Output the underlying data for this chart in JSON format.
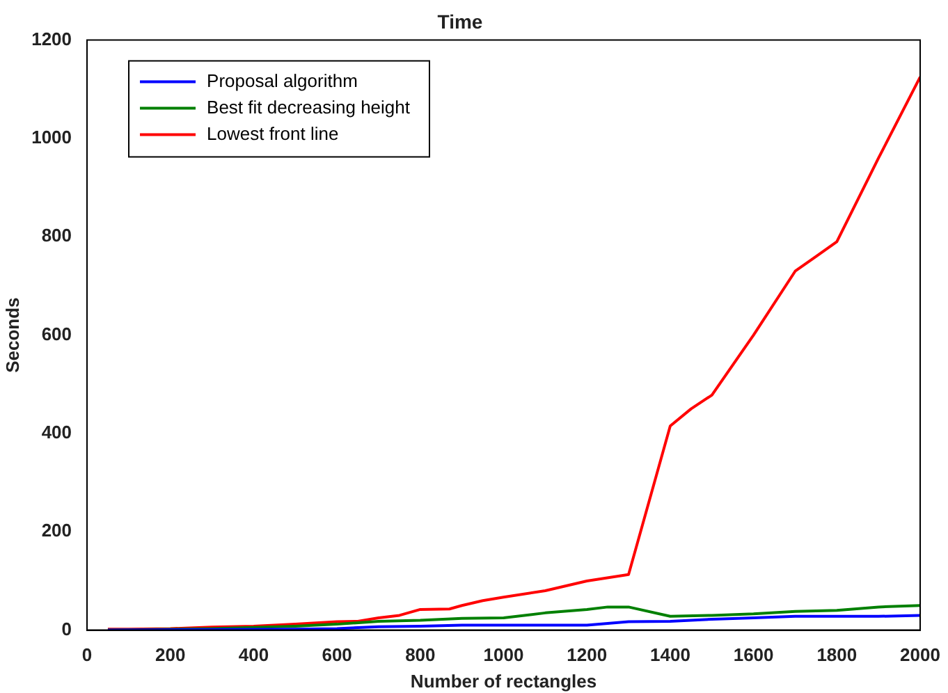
{
  "chart_data": {
    "type": "line",
    "title": "Time",
    "xlabel": "Number of rectangles",
    "ylabel": "Seconds",
    "xlim": [
      0,
      2000
    ],
    "xticks": [
      0,
      200,
      400,
      600,
      800,
      1000,
      1200,
      1400,
      1600,
      1800,
      2000
    ],
    "ylim": [
      0,
      1200
    ],
    "yticks": [
      0,
      200,
      400,
      600,
      800,
      1000,
      1200
    ],
    "grid": false,
    "legend": "top left",
    "marker": "none",
    "line_style": "solid",
    "series": [
      {
        "name": "Proposal algorithm",
        "color": "#0000ff",
        "x": [
          50,
          500,
          600,
          700,
          800,
          900,
          1000,
          1200,
          1300,
          1400,
          1500,
          1600,
          1700,
          1800,
          1900,
          2000
        ],
        "values": [
          0,
          2,
          3,
          7,
          8,
          10,
          10,
          10,
          17,
          18,
          22,
          25,
          28,
          28,
          28,
          30
        ]
      },
      {
        "name": "Best fit decreasing height",
        "color": "#008000",
        "x": [
          50,
          300,
          500,
          600,
          700,
          800,
          900,
          1000,
          1100,
          1200,
          1250,
          1300,
          1400,
          1500,
          1600,
          1700,
          1800,
          1900,
          2000
        ],
        "values": [
          0,
          3,
          8,
          12,
          18,
          20,
          24,
          25,
          35,
          42,
          47,
          47,
          28,
          30,
          33,
          38,
          40,
          47,
          50
        ]
      },
      {
        "name": "Lowest front line",
        "color": "#ff0000",
        "x": [
          50,
          100,
          200,
          300,
          400,
          500,
          600,
          650,
          700,
          750,
          800,
          870,
          900,
          950,
          1000,
          1100,
          1200,
          1300,
          1400,
          1450,
          1500,
          1600,
          1700,
          1750,
          1800,
          1900,
          2000
        ],
        "values": [
          2,
          2,
          3,
          6,
          8,
          12,
          17,
          18,
          25,
          30,
          42,
          43,
          50,
          60,
          67,
          80,
          100,
          113,
          415,
          450,
          478,
          600,
          730,
          760,
          790,
          960,
          1125
        ]
      }
    ]
  }
}
